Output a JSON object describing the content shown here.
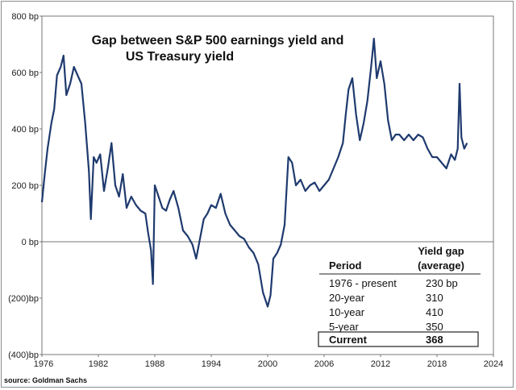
{
  "chart_data": {
    "type": "line",
    "title_line1": "Gap between S&P 500 earnings yield and",
    "title_line2": "US Treasury yield",
    "xlabel": "",
    "ylabel": "",
    "xlim": [
      1976,
      2024
    ],
    "ylim": [
      -400,
      800
    ],
    "x_ticks": [
      1976,
      1982,
      1988,
      1994,
      2000,
      2006,
      2012,
      2018,
      2024
    ],
    "y_ticks": [
      {
        "value": 800,
        "label": "800 bp"
      },
      {
        "value": 600,
        "label": "600 bp"
      },
      {
        "value": 400,
        "label": "400 bp"
      },
      {
        "value": 200,
        "label": "200 bp"
      },
      {
        "value": 0,
        "label": "0 bp"
      },
      {
        "value": -200,
        "label": "(200)bp"
      },
      {
        "value": -400,
        "label": "(400)bp"
      }
    ],
    "series": [
      {
        "name": "Yield gap",
        "color": "#1f3a6e",
        "x": [
          1976.0,
          1976.3,
          1976.6,
          1977.0,
          1977.3,
          1977.6,
          1978.0,
          1978.3,
          1978.6,
          1979.0,
          1979.4,
          1979.8,
          1980.2,
          1980.6,
          1981.0,
          1981.2,
          1981.5,
          1981.8,
          1982.2,
          1982.6,
          1983.0,
          1983.4,
          1983.8,
          1984.2,
          1984.6,
          1985.0,
          1985.5,
          1986.0,
          1986.5,
          1987.0,
          1987.3,
          1987.6,
          1987.8,
          1988.0,
          1988.4,
          1988.8,
          1989.2,
          1989.6,
          1990.0,
          1990.5,
          1991.0,
          1991.5,
          1992.0,
          1992.4,
          1992.8,
          1993.2,
          1993.6,
          1994.0,
          1994.5,
          1995.0,
          1995.5,
          1996.0,
          1996.5,
          1997.0,
          1997.5,
          1998.0,
          1998.5,
          1999.0,
          1999.5,
          2000.0,
          2000.3,
          2000.6,
          2001.0,
          2001.4,
          2001.8,
          2002.2,
          2002.6,
          2003.0,
          2003.5,
          2004.0,
          2004.5,
          2005.0,
          2005.5,
          2006.0,
          2006.5,
          2007.0,
          2007.5,
          2008.0,
          2008.3,
          2008.6,
          2009.0,
          2009.4,
          2009.8,
          2010.2,
          2010.6,
          2011.0,
          2011.3,
          2011.6,
          2012.0,
          2012.4,
          2012.8,
          2013.2,
          2013.6,
          2014.0,
          2014.5,
          2015.0,
          2015.5,
          2016.0,
          2016.5,
          2017.0,
          2017.5,
          2018.0,
          2018.5,
          2019.0,
          2019.5,
          2019.9,
          2020.2,
          2020.4,
          2020.6,
          2020.9,
          2021.2
        ],
        "values": [
          140,
          240,
          330,
          420,
          470,
          590,
          620,
          660,
          520,
          560,
          620,
          590,
          560,
          420,
          250,
          80,
          300,
          280,
          310,
          180,
          260,
          350,
          200,
          160,
          240,
          120,
          160,
          130,
          110,
          100,
          30,
          -30,
          -150,
          200,
          160,
          120,
          110,
          150,
          180,
          120,
          40,
          20,
          -10,
          -60,
          10,
          80,
          100,
          130,
          120,
          170,
          100,
          60,
          40,
          20,
          10,
          -20,
          -40,
          -80,
          -180,
          -230,
          -190,
          -60,
          -40,
          -10,
          60,
          300,
          280,
          200,
          220,
          180,
          200,
          210,
          180,
          200,
          220,
          260,
          300,
          350,
          450,
          540,
          580,
          450,
          360,
          420,
          500,
          620,
          720,
          580,
          640,
          560,
          430,
          360,
          380,
          380,
          360,
          380,
          360,
          380,
          370,
          330,
          300,
          300,
          280,
          260,
          310,
          290,
          330,
          560,
          370,
          330,
          350
        ]
      }
    ],
    "table": {
      "header_line1": "Yield gap",
      "header_line2": "(average)",
      "period_header": "Period",
      "rows": [
        {
          "period": "1976 - present",
          "value": "230  bp"
        },
        {
          "period": "20-year",
          "value": "310"
        },
        {
          "period": "10-year",
          "value": "410"
        },
        {
          "period": "5-year",
          "value": "350"
        }
      ],
      "current_label": "Current",
      "current_value": "368"
    },
    "source": "source: Goldman Sachs"
  }
}
